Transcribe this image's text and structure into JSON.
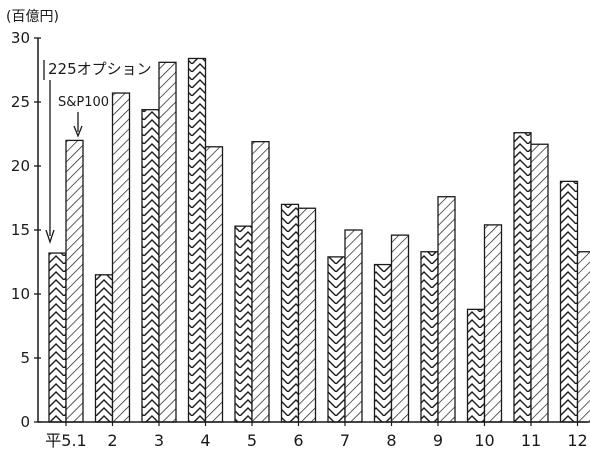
{
  "chart_data": {
    "type": "bar",
    "unit_label": "(百億円)",
    "categories": [
      "平5.1",
      "2",
      "3",
      "4",
      "5",
      "6",
      "7",
      "8",
      "9",
      "10",
      "11",
      "12"
    ],
    "series": [
      {
        "name": "225オプション",
        "values": [
          13.2,
          11.5,
          24.4,
          28.4,
          15.3,
          17.0,
          12.9,
          12.3,
          13.3,
          8.8,
          22.6,
          18.8
        ]
      },
      {
        "name": "S&P100",
        "values": [
          22.0,
          25.7,
          28.1,
          21.5,
          21.9,
          16.7,
          15.0,
          14.6,
          17.6,
          15.4,
          21.7,
          13.3
        ]
      }
    ],
    "ylim": [
      0,
      30
    ],
    "yticks": [
      0,
      5,
      10,
      15,
      20,
      25,
      30
    ],
    "grid": false,
    "colors": {
      "ink": "#1a1a1a",
      "background": "#ffffff"
    }
  }
}
